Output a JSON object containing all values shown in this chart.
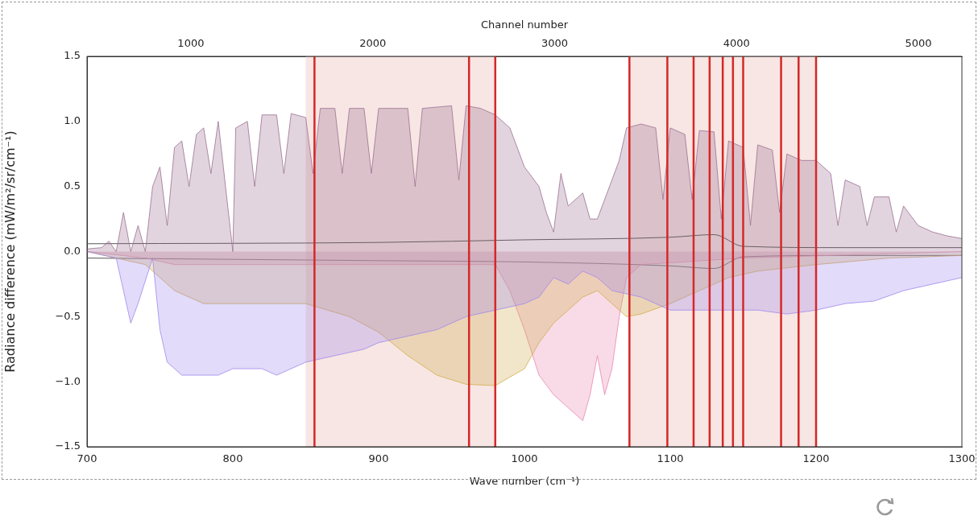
{
  "chart_data": {
    "type": "area",
    "xlabel": "Wave number (cm⁻¹)",
    "ylabel": "Radiance difference (mW/m²/sr/cm⁻¹)",
    "x2label": "Channel number",
    "xlim": [
      700,
      1300
    ],
    "xticks": [
      700,
      800,
      900,
      1000,
      1100,
      1200,
      1300
    ],
    "x2lim": [
      429,
      5239
    ],
    "x2ticks": [
      1000,
      2000,
      3000,
      4000,
      5000
    ],
    "ylim": [
      -1.5,
      1.5
    ],
    "yticks": [
      {
        "value": -1.5,
        "label": "−1.5"
      },
      {
        "value": -1,
        "label": "−1.0"
      },
      {
        "value": -0.5,
        "label": "−0.5"
      },
      {
        "value": 0,
        "label": "0.0"
      },
      {
        "value": 0.5,
        "label": "0.5"
      },
      {
        "value": 1,
        "label": "1.0"
      },
      {
        "value": 1.5,
        "label": "1.5"
      }
    ],
    "grid": false,
    "legend": false,
    "bands": [
      {
        "axis": "x",
        "from": 850,
        "to": 980,
        "color": "#f2d6d0"
      },
      {
        "axis": "x",
        "from": 1072,
        "to": 1200,
        "color": "#f2d6d0"
      }
    ],
    "ref_lines": [
      {
        "axis": "x",
        "value": 856,
        "color": "#d62728"
      },
      {
        "axis": "x",
        "value": 962,
        "color": "#d62728"
      },
      {
        "axis": "x",
        "value": 980,
        "color": "#d62728"
      },
      {
        "axis": "x",
        "value": 1072,
        "color": "#d62728"
      },
      {
        "axis": "x",
        "value": 1098,
        "color": "#d62728"
      },
      {
        "axis": "x",
        "value": 1116,
        "color": "#d62728"
      },
      {
        "axis": "x",
        "value": 1127,
        "color": "#d62728"
      },
      {
        "axis": "x",
        "value": 1136,
        "color": "#d62728"
      },
      {
        "axis": "x",
        "value": 1143,
        "color": "#d62728"
      },
      {
        "axis": "x",
        "value": 1150,
        "color": "#d62728"
      },
      {
        "axis": "x",
        "value": 1176,
        "color": "#d62728"
      },
      {
        "axis": "x",
        "value": 1188,
        "color": "#d62728"
      },
      {
        "axis": "x",
        "value": 1200,
        "color": "#d62728"
      }
    ],
    "series": [
      {
        "color": "#9c7093",
        "x": [
          700,
          710,
          715,
          720,
          725,
          730,
          735,
          740,
          745,
          750,
          755,
          760,
          765,
          770,
          775,
          780,
          785,
          790,
          795,
          800,
          802,
          810,
          815,
          820,
          830,
          835,
          840,
          850,
          855,
          860,
          870,
          875,
          880,
          890,
          895,
          900,
          910,
          920,
          925,
          930,
          950,
          955,
          960,
          970,
          980,
          990,
          1000,
          1010,
          1015,
          1020,
          1025,
          1030,
          1040,
          1045,
          1050,
          1060,
          1065,
          1070,
          1080,
          1090,
          1095,
          1100,
          1110,
          1115,
          1120,
          1130,
          1135,
          1140,
          1150,
          1155,
          1160,
          1170,
          1175,
          1180,
          1190,
          1200,
          1210,
          1215,
          1220,
          1230,
          1235,
          1240,
          1250,
          1255,
          1260,
          1270,
          1280,
          1290,
          1300
        ],
        "values": [
          0.02,
          0.03,
          0.08,
          0.0,
          0.3,
          0.0,
          0.2,
          0.0,
          0.5,
          0.65,
          0.2,
          0.8,
          0.85,
          0.5,
          0.9,
          0.95,
          0.6,
          1.0,
          0.5,
          0.0,
          0.95,
          1.0,
          0.5,
          1.05,
          1.05,
          0.6,
          1.06,
          1.03,
          0.6,
          1.1,
          1.1,
          0.6,
          1.1,
          1.1,
          0.6,
          1.1,
          1.1,
          1.1,
          0.5,
          1.1,
          1.12,
          0.55,
          1.12,
          1.1,
          1.05,
          0.95,
          0.65,
          0.5,
          0.3,
          0.15,
          0.6,
          0.35,
          0.45,
          0.25,
          0.25,
          0.55,
          0.7,
          0.95,
          0.98,
          0.95,
          0.4,
          0.95,
          0.9,
          0.4,
          0.93,
          0.92,
          0.25,
          0.85,
          0.8,
          0.2,
          0.82,
          0.78,
          0.3,
          0.75,
          0.7,
          0.7,
          0.6,
          0.2,
          0.55,
          0.5,
          0.2,
          0.42,
          0.42,
          0.15,
          0.35,
          0.2,
          0.15,
          0.12,
          0.1
        ]
      },
      {
        "color": "#a088ee",
        "x": [
          700,
          720,
          725,
          730,
          735,
          745,
          750,
          755,
          765,
          780,
          790,
          800,
          820,
          830,
          850,
          870,
          890,
          900,
          920,
          940,
          960,
          980,
          1000,
          1010,
          1020,
          1030,
          1040,
          1050,
          1060,
          1080,
          1100,
          1120,
          1140,
          1160,
          1180,
          1200,
          1220,
          1240,
          1260,
          1280,
          1300
        ],
        "values": [
          0,
          -0.05,
          -0.3,
          -0.55,
          -0.4,
          -0.05,
          -0.6,
          -0.85,
          -0.95,
          -0.95,
          -0.95,
          -0.9,
          -0.9,
          -0.95,
          -0.85,
          -0.8,
          -0.75,
          -0.7,
          -0.65,
          -0.6,
          -0.5,
          -0.45,
          -0.4,
          -0.35,
          -0.2,
          -0.25,
          -0.15,
          -0.2,
          -0.3,
          -0.35,
          -0.45,
          -0.45,
          -0.45,
          -0.45,
          -0.48,
          -0.45,
          -0.4,
          -0.38,
          -0.3,
          -0.25,
          -0.2
        ]
      },
      {
        "color": "#d2ad4c",
        "x": [
          700,
          740,
          760,
          780,
          800,
          850,
          880,
          900,
          920,
          940,
          960,
          980,
          1000,
          1010,
          1020,
          1030,
          1040,
          1050,
          1060,
          1070,
          1080,
          1100,
          1120,
          1140,
          1160,
          1200,
          1250,
          1300
        ],
        "values": [
          0,
          -0.1,
          -0.3,
          -0.4,
          -0.4,
          -0.4,
          -0.5,
          -0.62,
          -0.8,
          -0.95,
          -1.02,
          -1.03,
          -0.9,
          -0.7,
          -0.55,
          -0.45,
          -0.35,
          -0.3,
          -0.4,
          -0.5,
          -0.48,
          -0.4,
          -0.3,
          -0.2,
          -0.15,
          -0.1,
          -0.05,
          -0.03
        ]
      },
      {
        "color": "#e887b0",
        "x": [
          700,
          740,
          760,
          980,
          990,
          1000,
          1010,
          1020,
          1030,
          1040,
          1045,
          1050,
          1055,
          1060,
          1065,
          1070,
          1080,
          1150,
          1300
        ],
        "values": [
          0,
          -0.05,
          -0.1,
          -0.1,
          -0.3,
          -0.6,
          -0.95,
          -1.1,
          -1.2,
          -1.3,
          -1.1,
          -0.8,
          -1.1,
          -0.9,
          -0.5,
          -0.2,
          -0.1,
          -0.05,
          0
        ]
      },
      {
        "type": "line",
        "color": "#555555",
        "x": [
          700,
          900,
          1000,
          1100,
          1130,
          1150,
          1220,
          1300
        ],
        "values": [
          0.06,
          0.07,
          0.09,
          0.11,
          0.13,
          0.04,
          0.03,
          0.03
        ]
      },
      {
        "type": "line",
        "color": "#555555",
        "x": [
          700,
          900,
          1000,
          1100,
          1130,
          1150,
          1220,
          1300
        ],
        "values": [
          -0.05,
          -0.07,
          -0.08,
          -0.11,
          -0.13,
          -0.04,
          -0.03,
          -0.03
        ]
      }
    ]
  }
}
